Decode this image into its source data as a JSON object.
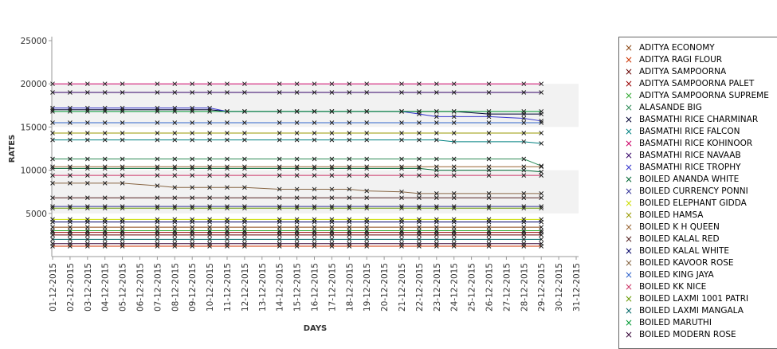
{
  "chart_data": {
    "type": "line",
    "xlabel": "DAYS",
    "ylabel": "RATES",
    "ylim": [
      0,
      25000
    ],
    "yticks": [
      5000,
      10000,
      15000,
      20000,
      25000
    ],
    "x_categories": [
      "01-12-2015",
      "02-12-2015",
      "03-12-2015",
      "04-12-2015",
      "05-12-2015",
      "06-12-2015",
      "07-12-2015",
      "08-12-2015",
      "09-12-2015",
      "10-12-2015",
      "11-12-2015",
      "12-12-2015",
      "13-12-2015",
      "14-12-2015",
      "15-12-2015",
      "16-12-2015",
      "17-12-2015",
      "18-12-2015",
      "19-12-2015",
      "20-12-2015",
      "21-12-2015",
      "22-12-2015",
      "23-12-2015",
      "24-12-2015",
      "25-12-2015",
      "26-12-2015",
      "27-12-2015",
      "28-12-2015",
      "29-12-2015",
      "30-12-2015",
      "31-12-2015"
    ],
    "data_days": [
      "01-12-2015",
      "02-12-2015",
      "03-12-2015",
      "04-12-2015",
      "05-12-2015",
      "07-12-2015",
      "08-12-2015",
      "09-12-2015",
      "10-12-2015",
      "11-12-2015",
      "12-12-2015",
      "14-12-2015",
      "15-12-2015",
      "16-12-2015",
      "17-12-2015",
      "18-12-2015",
      "19-12-2015",
      "21-12-2015",
      "22-12-2015",
      "23-12-2015",
      "24-12-2015",
      "26-12-2015",
      "28-12-2015",
      "29-12-2015"
    ],
    "grid": false,
    "legend_position": "right",
    "series": [
      {
        "name": "ADITYA ECONOMY",
        "color": "#8b4513",
        "values": [
          3400,
          3400,
          3400,
          3400,
          3400,
          3400,
          3400,
          3400,
          3400,
          3400,
          3400,
          3400,
          3400,
          3400,
          3400,
          3400,
          3400,
          3400,
          3400,
          3400,
          3400,
          3400,
          3400,
          3400
        ]
      },
      {
        "name": "ADITYA RAGI FLOUR",
        "color": "#cc3300",
        "values": [
          1200,
          1200,
          1200,
          1200,
          1200,
          1200,
          1200,
          1200,
          1200,
          1200,
          1200,
          1200,
          1200,
          1200,
          1200,
          1200,
          1200,
          1200,
          1200,
          1200,
          1200,
          1200,
          1200,
          1200
        ]
      },
      {
        "name": "ADITYA SAMPOORNA",
        "color": "#660000",
        "values": [
          2500,
          2500,
          2500,
          2500,
          2500,
          2500,
          2500,
          2500,
          2500,
          2500,
          2500,
          2500,
          2500,
          2500,
          2500,
          2500,
          2500,
          2500,
          2500,
          2500,
          2500,
          2500,
          2500,
          2500
        ]
      },
      {
        "name": "ADITYA SAMPOORNA PALET",
        "color": "#990000",
        "values": [
          2800,
          2800,
          2800,
          2800,
          2800,
          2800,
          2800,
          2800,
          2800,
          2800,
          2800,
          2800,
          2800,
          2800,
          2800,
          2800,
          2800,
          2800,
          2800,
          2800,
          2800,
          2800,
          2800,
          2800
        ]
      },
      {
        "name": "ADITYA SAMPOORNA SUPREME",
        "color": "#33aa33",
        "values": [
          3000,
          3000,
          3000,
          3000,
          3000,
          3000,
          3000,
          3000,
          3000,
          3000,
          3000,
          3000,
          3000,
          3000,
          3000,
          3000,
          3000,
          3000,
          3000,
          3000,
          3000,
          3000,
          3000,
          3000
        ]
      },
      {
        "name": "ALASANDE BIG",
        "color": "#2e8b57",
        "values": [
          11300,
          11300,
          11300,
          11300,
          11300,
          11300,
          11300,
          11300,
          11300,
          11300,
          11300,
          11300,
          11300,
          11300,
          11300,
          11300,
          11300,
          11300,
          11300,
          11300,
          11300,
          11300,
          11300,
          10500
        ]
      },
      {
        "name": "BASMATHI RICE CHARMINAR",
        "color": "#000033",
        "values": [
          17000,
          17000,
          17000,
          17000,
          17000,
          17000,
          17000,
          17000,
          17000,
          16800,
          16800,
          16800,
          16800,
          16800,
          16800,
          16800,
          16800,
          16800,
          16800,
          16800,
          16800,
          16500,
          16500,
          16500
        ]
      },
      {
        "name": "BASMATHI RICE FALCON",
        "color": "#008080",
        "values": [
          13500,
          13500,
          13500,
          13500,
          13500,
          13500,
          13500,
          13500,
          13500,
          13500,
          13500,
          13500,
          13500,
          13500,
          13500,
          13500,
          13500,
          13500,
          13500,
          13500,
          13300,
          13300,
          13300,
          13100
        ]
      },
      {
        "name": "BASMATHI RICE KOHINOOR",
        "color": "#cc0066",
        "values": [
          20000,
          20000,
          20000,
          20000,
          20000,
          20000,
          20000,
          20000,
          20000,
          20000,
          20000,
          20000,
          20000,
          20000,
          20000,
          20000,
          20000,
          20000,
          20000,
          20000,
          20000,
          20000,
          20000,
          20000
        ]
      },
      {
        "name": "BASMATHI RICE NAVAAB",
        "color": "#330066",
        "values": [
          19000,
          19000,
          19000,
          19000,
          19000,
          19000,
          19000,
          19000,
          19000,
          19000,
          19000,
          19000,
          19000,
          19000,
          19000,
          19000,
          19000,
          19000,
          19000,
          19000,
          19000,
          19000,
          19000,
          19000
        ]
      },
      {
        "name": "BASMATHI RICE TROPHY",
        "color": "#3333cc",
        "values": [
          17200,
          17200,
          17200,
          17200,
          17200,
          17200,
          17200,
          17200,
          17200,
          16800,
          16800,
          16800,
          16800,
          16800,
          16800,
          16800,
          16800,
          16800,
          16500,
          16200,
          16200,
          16200,
          16000,
          15700
        ]
      },
      {
        "name": "BOILED ANANDA WHITE",
        "color": "#006633",
        "values": [
          10200,
          10200,
          10200,
          10200,
          10200,
          10200,
          10200,
          10200,
          10200,
          10200,
          10200,
          10200,
          10200,
          10200,
          10200,
          10200,
          10200,
          10200,
          10200,
          10000,
          10000,
          10000,
          10000,
          9800
        ]
      },
      {
        "name": "BOILED CURRENCY PONNI",
        "color": "#333399",
        "values": [
          5800,
          5800,
          5800,
          5800,
          5800,
          5800,
          5800,
          5800,
          5800,
          5800,
          5800,
          5800,
          5800,
          5800,
          5800,
          5800,
          5800,
          5800,
          5800,
          5800,
          5800,
          5800,
          5800,
          5800
        ]
      },
      {
        "name": "BOILED ELEPHANT GIDDA",
        "color": "#ccdd00",
        "values": [
          4300,
          4300,
          4300,
          4300,
          4300,
          4300,
          4300,
          4300,
          4300,
          4300,
          4300,
          4300,
          4300,
          4300,
          4300,
          4300,
          4300,
          4300,
          4300,
          4300,
          4300,
          4300,
          4300,
          4300
        ]
      },
      {
        "name": "BOILED HAMSA",
        "color": "#999900",
        "values": [
          14300,
          14300,
          14300,
          14300,
          14300,
          14300,
          14300,
          14300,
          14300,
          14300,
          14300,
          14300,
          14300,
          14300,
          14300,
          14300,
          14300,
          14300,
          14300,
          14300,
          14300,
          14300,
          14300,
          14300
        ]
      },
      {
        "name": "BOILED K H QUEEN",
        "color": "#996633",
        "values": [
          10400,
          10400,
          10400,
          10400,
          10400,
          10400,
          10400,
          10400,
          10400,
          10400,
          10400,
          10400,
          10400,
          10400,
          10400,
          10400,
          10400,
          10400,
          10400,
          10400,
          10400,
          10400,
          10400,
          10400
        ]
      },
      {
        "name": "BOILED KALAL RED",
        "color": "#552222",
        "values": [
          6800,
          6800,
          6800,
          6800,
          6800,
          6800,
          6800,
          6800,
          6800,
          6800,
          6800,
          6800,
          6800,
          6800,
          6800,
          6800,
          6800,
          6800,
          6800,
          6800,
          6800,
          6800,
          6800,
          6800
        ]
      },
      {
        "name": "BOILED KALAL WHITE",
        "color": "#000066",
        "values": [
          4000,
          4000,
          4000,
          4000,
          4000,
          4000,
          4000,
          4000,
          4000,
          4000,
          4000,
          4000,
          4000,
          4000,
          4000,
          4000,
          4000,
          4000,
          4000,
          4000,
          4000,
          4000,
          4000,
          4000
        ]
      },
      {
        "name": "BOILED KAVOOR ROSE",
        "color": "#886644",
        "values": [
          8500,
          8500,
          8500,
          8500,
          8500,
          8200,
          8000,
          8000,
          8000,
          8000,
          8000,
          7800,
          7800,
          7800,
          7800,
          7800,
          7600,
          7500,
          7300,
          7300,
          7300,
          7300,
          7300,
          7300
        ]
      },
      {
        "name": "BOILED KING JAYA",
        "color": "#3366cc",
        "values": [
          15500,
          15500,
          15500,
          15500,
          15500,
          15500,
          15500,
          15500,
          15500,
          15500,
          15500,
          15500,
          15500,
          15500,
          15500,
          15500,
          15500,
          15500,
          15500,
          15500,
          15500,
          15500,
          15500,
          15500
        ]
      },
      {
        "name": "BOILED KK NICE",
        "color": "#cc3366",
        "values": [
          9400,
          9400,
          9400,
          9400,
          9400,
          9400,
          9400,
          9400,
          9400,
          9400,
          9400,
          9400,
          9400,
          9400,
          9400,
          9400,
          9400,
          9400,
          9400,
          9400,
          9400,
          9400,
          9400,
          9400
        ]
      },
      {
        "name": "BOILED LAXMI 1001 PATRI",
        "color": "#669900",
        "values": [
          5600,
          5600,
          5600,
          5600,
          5600,
          5600,
          5600,
          5600,
          5600,
          5600,
          5600,
          5600,
          5600,
          5600,
          5600,
          5600,
          5600,
          5600,
          5600,
          5600,
          5600,
          5600,
          5600,
          5600
        ]
      },
      {
        "name": "BOILED LAXMI MANGALA",
        "color": "#006666",
        "values": [
          2000,
          2000,
          2000,
          2000,
          2000,
          2000,
          2000,
          2000,
          2000,
          2000,
          2000,
          2000,
          2000,
          2000,
          2000,
          2000,
          2000,
          2000,
          2000,
          2000,
          2000,
          2000,
          2000,
          2000
        ]
      },
      {
        "name": "BOILED MARUTHI",
        "color": "#009933",
        "values": [
          16800,
          16800,
          16800,
          16800,
          16800,
          16800,
          16800,
          16800,
          16800,
          16800,
          16800,
          16800,
          16800,
          16800,
          16800,
          16800,
          16800,
          16800,
          16800,
          16800,
          16800,
          16800,
          16800,
          16800
        ]
      },
      {
        "name": "BOILED MODERN ROSE",
        "color": "#330033",
        "values": [
          1500,
          1500,
          1500,
          1500,
          1500,
          1500,
          1500,
          1500,
          1500,
          1500,
          1500,
          1500,
          1500,
          1500,
          1500,
          1500,
          1500,
          1500,
          1500,
          1500,
          1500,
          1500,
          1500,
          1500
        ]
      }
    ]
  }
}
